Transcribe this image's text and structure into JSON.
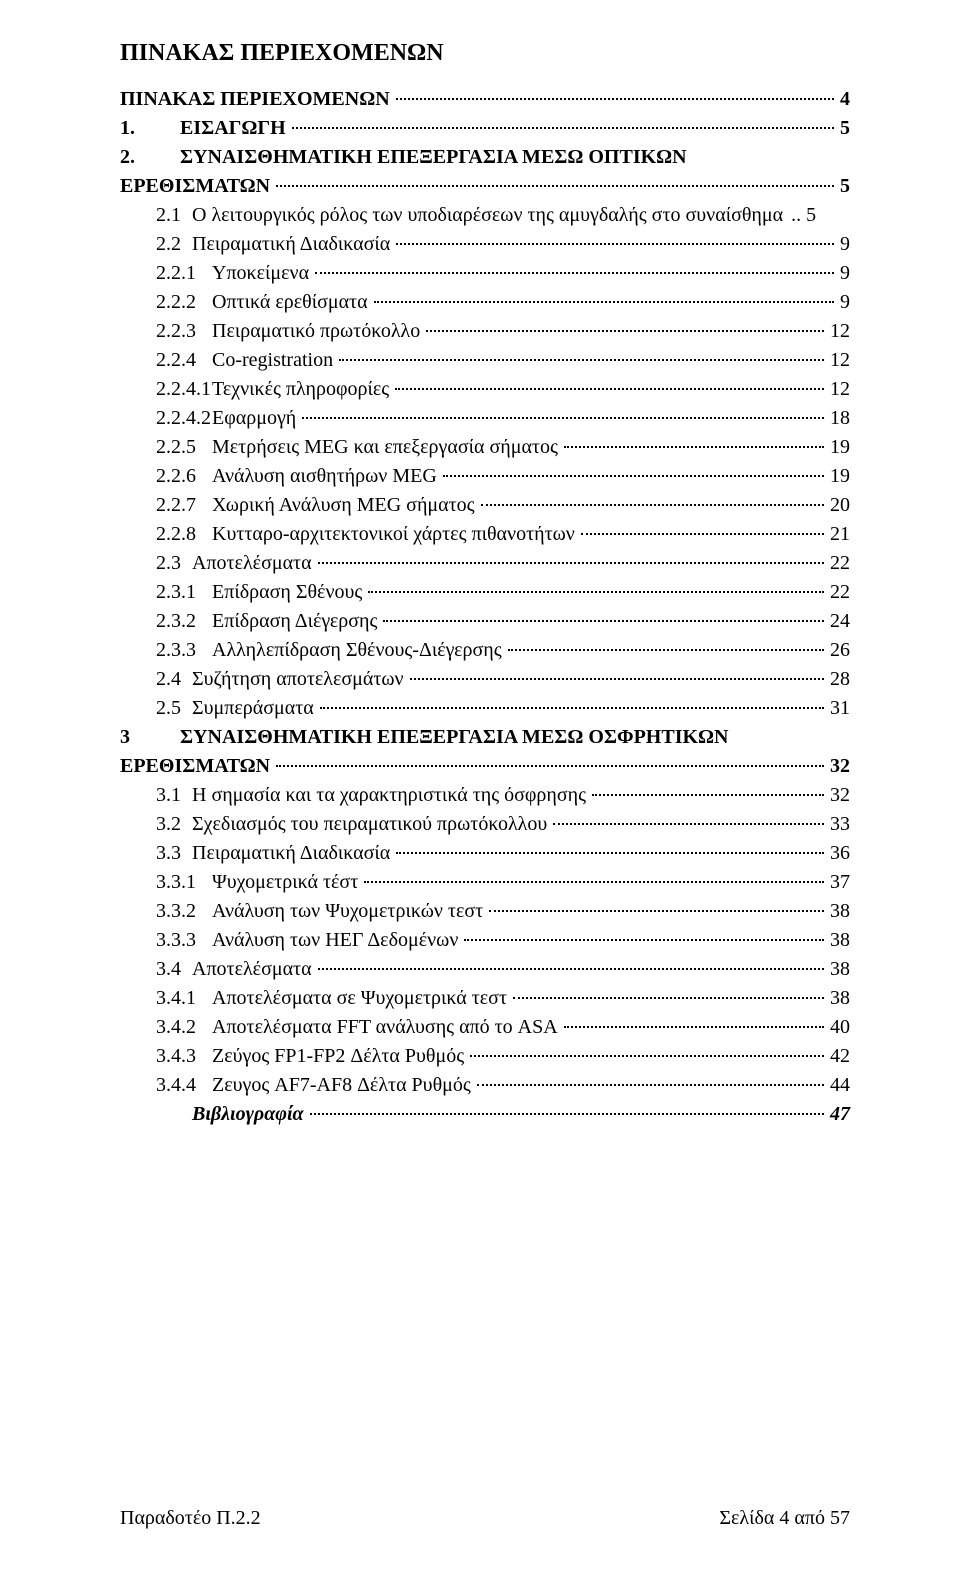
{
  "title": "ΠΙΝΑΚΑΣ ΠΕΡΙΕΧΟΜΕΝΩΝ",
  "toc": [
    {
      "label": "",
      "text": "ΠΙΝΑΚΑΣ ΠΕΡΙΕΧΟΜΕΝΩΝ",
      "page": "4",
      "bold": true,
      "lvl": "lvl0"
    },
    {
      "label": "1.",
      "text": "ΕΙΣΑΓΩΓΗ",
      "page": "5",
      "bold": true,
      "lvl": "lvl0b"
    },
    {
      "label": "2.",
      "text": "ΣΥΝΑΙΣΘΗΜΑΤΙΚΗ ΕΠΕΞΕΡΓΑΣΙΑ ΜΕΣΩ ΟΠΤΙΚΩΝ",
      "page": "",
      "bold": true,
      "lvl": "lvl0b",
      "nowrap_break": true,
      "cont_text": "ΕΡΕΘΙΣΜΑΤΩΝ",
      "cont_page": "5"
    },
    {
      "label": "2.1",
      "text": "Ο λειτουργικός ρόλος των υποδιαρέσεων της αμυγδαλής στο συναίσθημα",
      "page": ".. 5",
      "bold": false,
      "lvl": "lvl1",
      "nodots": true
    },
    {
      "label": "2.2",
      "text": "Πειραματική Διαδικασία",
      "page": "9",
      "bold": false,
      "lvl": "lvl1"
    },
    {
      "label": "2.2.1",
      "text": "Υποκείμενα",
      "page": "9",
      "bold": false,
      "lvl": "lvl2"
    },
    {
      "label": "2.2.2",
      "text": "Οπτικά ερεθίσματα",
      "page": "9",
      "bold": false,
      "lvl": "lvl2"
    },
    {
      "label": "2.2.3",
      "text": "Πειραματικό πρωτόκολλο",
      "page": "12",
      "bold": false,
      "lvl": "lvl2"
    },
    {
      "label": "2.2.4",
      "text": "Co-registration",
      "page": "12",
      "bold": false,
      "lvl": "lvl2"
    },
    {
      "label": "2.2.4.1",
      "text": "Τεχνικές πληροφορίες",
      "page": "12",
      "bold": false,
      "lvl": "lvl2"
    },
    {
      "label": "2.2.4.2",
      "text": "Εφαρμογή",
      "page": "18",
      "bold": false,
      "lvl": "lvl2"
    },
    {
      "label": "2.2.5",
      "text": "Μετρήσεις MEG και επεξεργασία σήματος",
      "page": "19",
      "bold": false,
      "lvl": "lvl2"
    },
    {
      "label": "2.2.6",
      "text": "Ανάλυση αισθητήρων MEG",
      "page": "19",
      "bold": false,
      "lvl": "lvl2"
    },
    {
      "label": "2.2.7",
      "text": "Χωρική Ανάλυση MEG σήματος",
      "page": "20",
      "bold": false,
      "lvl": "lvl2"
    },
    {
      "label": "2.2.8",
      "text": "Κυτταρο-αρχιτεκτονικοί χάρτες πιθανοτήτων",
      "page": "21",
      "bold": false,
      "lvl": "lvl2"
    },
    {
      "label": "2.3",
      "text": "Αποτελέσματα",
      "page": "22",
      "bold": false,
      "lvl": "lvl1"
    },
    {
      "label": "2.3.1",
      "text": "Επίδραση Σθένους",
      "page": "22",
      "bold": false,
      "lvl": "lvl2"
    },
    {
      "label": "2.3.2",
      "text": "Επίδραση Διέγερσης",
      "page": "24",
      "bold": false,
      "lvl": "lvl2"
    },
    {
      "label": "2.3.3",
      "text": "Αλληλεπίδραση Σθένους-Διέγερσης",
      "page": "26",
      "bold": false,
      "lvl": "lvl2"
    },
    {
      "label": "2.4",
      "text": "Συζήτηση αποτελεσμάτων",
      "page": "28",
      "bold": false,
      "lvl": "lvl1"
    },
    {
      "label": "2.5",
      "text": "Συμπεράσματα",
      "page": "31",
      "bold": false,
      "lvl": "lvl1"
    },
    {
      "label": "3",
      "text": "ΣΥΝΑΙΣΘΗΜΑΤΙΚΗ ΕΠΕΞΕΡΓΑΣΙΑ ΜΕΣΩ ΟΣΦΡΗΤΙΚΩΝ",
      "page": "",
      "bold": true,
      "lvl": "lvl0b",
      "nowrap_break": true,
      "cont_text": "ΕΡΕΘΙΣΜΑΤΩΝ",
      "cont_page": "32"
    },
    {
      "label": "3.1",
      "text": "Η σημασία και τα χαρακτηριστικά της όσφρησης",
      "page": "32",
      "bold": false,
      "lvl": "lvl1"
    },
    {
      "label": "3.2",
      "text": "Σχεδιασμός του πειραματικού πρωτόκολλου",
      "page": "33",
      "bold": false,
      "lvl": "lvl1"
    },
    {
      "label": "3.3",
      "text": "Πειραματική Διαδικασία",
      "page": "36",
      "bold": false,
      "lvl": "lvl1"
    },
    {
      "label": "3.3.1",
      "text": "Ψυχομετρικά τέστ",
      "page": "37",
      "bold": false,
      "lvl": "lvl2"
    },
    {
      "label": "3.3.2",
      "text": "Ανάλυση των Ψυχομετρικών τεστ",
      "page": "38",
      "bold": false,
      "lvl": "lvl2"
    },
    {
      "label": "3.3.3",
      "text": "Ανάλυση των ΗΕΓ Δεδομένων",
      "page": "38",
      "bold": false,
      "lvl": "lvl2"
    },
    {
      "label": "3.4",
      "text": "Αποτελέσματα",
      "page": "38",
      "bold": false,
      "lvl": "lvl1"
    },
    {
      "label": "3.4.1",
      "text": "Αποτελέσματα σε Ψυχομετρικά τεστ",
      "page": "38",
      "bold": false,
      "lvl": "lvl2"
    },
    {
      "label": "3.4.2",
      "text": "Αποτελέσματα FFT ανάλυσης από το ASA",
      "page": "40",
      "bold": false,
      "lvl": "lvl2"
    },
    {
      "label": "3.4.3",
      "text": "Ζεύγος FP1-FP2 Δέλτα Ρυθμός",
      "page": "42",
      "bold": false,
      "lvl": "lvl2"
    },
    {
      "label": "3.4.4",
      "text": "Ζευγος AF7-AF8 Δέλτα Ρυθμός",
      "page": "44",
      "bold": false,
      "lvl": "lvl2"
    },
    {
      "label": "",
      "text": "Βιβλιογραφία",
      "page": "47",
      "bold": true,
      "lvl": "lvl1",
      "italic": true
    }
  ],
  "footer": {
    "left": "Παραδοτέο Π.2.2",
    "right": "Σελίδα 4 από 57"
  }
}
